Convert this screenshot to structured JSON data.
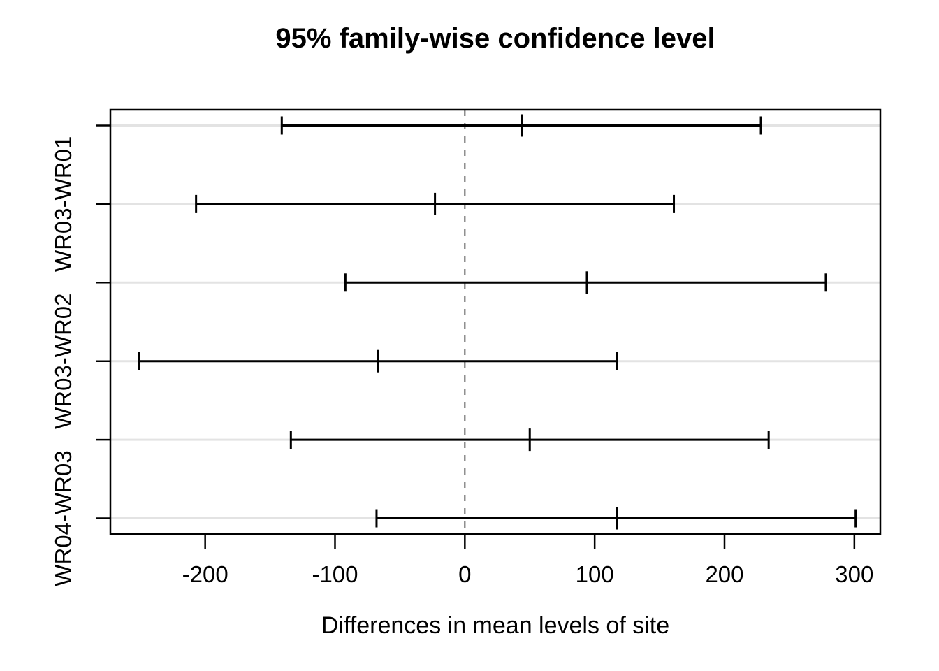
{
  "chart_data": {
    "type": "errorbar",
    "orientation": "horizontal",
    "title": "95% family-wise confidence level",
    "xlabel": "Differences in mean levels of site",
    "ylabel": "",
    "xlim": [
      -273,
      320
    ],
    "x_ticks": [
      -200,
      -100,
      0,
      100,
      200,
      300
    ],
    "grid": "horizontal-light-gray-per-row",
    "legend": "none",
    "zero_reference_line": {
      "x": 0,
      "style": "dashed"
    },
    "y_tick_count": 6,
    "y_axis_labels_visible": [
      "WR03-WR01",
      "WR03-WR02",
      "WR04-WR03"
    ],
    "intervals": [
      {
        "row": 1,
        "y_label": "",
        "lower": -141,
        "center": 44,
        "upper": 228
      },
      {
        "row": 2,
        "y_label": "WR03-WR01",
        "lower": -207,
        "center": -23,
        "upper": 161
      },
      {
        "row": 3,
        "y_label": "",
        "lower": -92,
        "center": 94,
        "upper": 278
      },
      {
        "row": 4,
        "y_label": "WR03-WR02",
        "lower": -251,
        "center": -67,
        "upper": 117
      },
      {
        "row": 5,
        "y_label": "",
        "lower": -134,
        "center": 50,
        "upper": 234
      },
      {
        "row": 6,
        "y_label": "WR04-WR03",
        "lower": -68,
        "center": 117,
        "upper": 301
      }
    ],
    "colors": {
      "interval": "#000000",
      "axis": "#000000",
      "grid": "#e3e3e3",
      "zero_line": "#5a5a5a",
      "background": "#ffffff"
    }
  }
}
